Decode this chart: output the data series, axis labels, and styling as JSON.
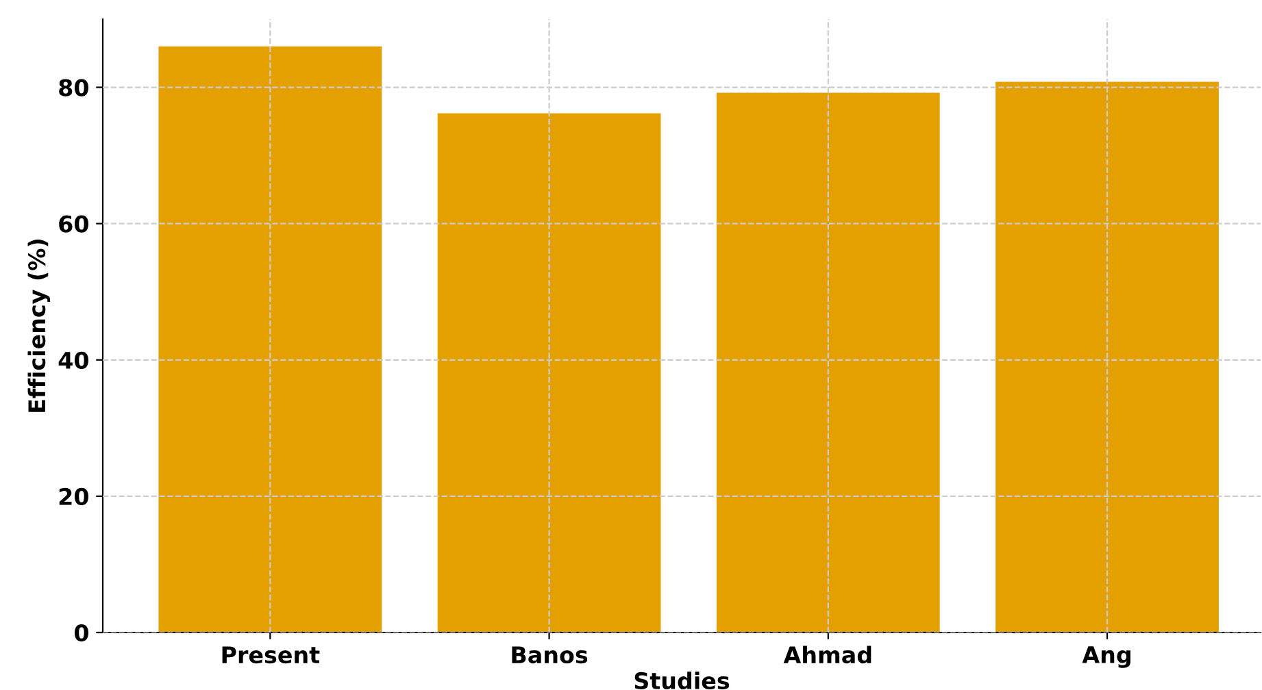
{
  "chart_data": {
    "type": "bar",
    "xlabel": "Studies",
    "ylabel": "Efficiency (%)",
    "categories": [
      "Present",
      "Banos",
      "Ahmad",
      "Ang"
    ],
    "values": [
      86,
      76.2,
      79.2,
      80.8
    ],
    "color": "#e3a000",
    "ylim": [
      0,
      90
    ],
    "yticks": [
      0,
      20,
      40,
      60,
      80
    ],
    "grid": true
  }
}
